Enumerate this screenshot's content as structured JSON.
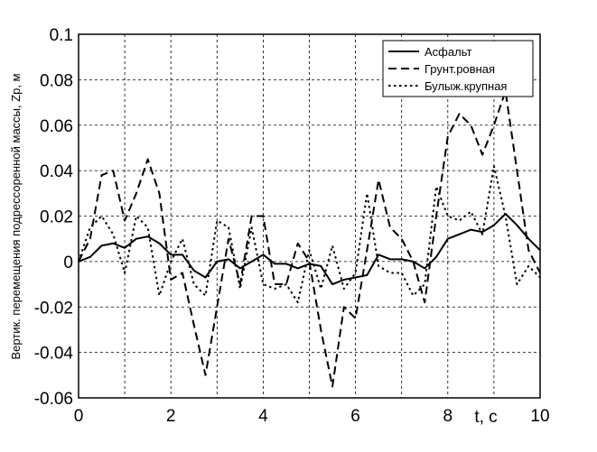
{
  "chart_data": {
    "type": "line",
    "ylabel": "Вертик. перемещения подрессоренной массы, Zp, м",
    "xlabel": "t, c",
    "x": [
      0,
      0.25,
      0.5,
      0.75,
      1,
      1.25,
      1.5,
      1.75,
      2,
      2.25,
      2.5,
      2.75,
      3,
      3.25,
      3.5,
      3.75,
      4,
      4.25,
      4.5,
      4.75,
      5,
      5.25,
      5.5,
      5.75,
      6,
      6.25,
      6.5,
      6.75,
      7,
      7.25,
      7.5,
      7.75,
      8,
      8.25,
      8.5,
      8.75,
      9,
      9.25,
      9.5,
      9.75,
      10
    ],
    "series": [
      {
        "name": "Асфальт",
        "color": "#000000",
        "style": "solid",
        "values": [
          0,
          0.002,
          0.007,
          0.008,
          0.006,
          0.01,
          0.011,
          0.008,
          0.003,
          0.003,
          -0.004,
          -0.007,
          0,
          0.001,
          -0.003,
          0,
          0.003,
          -0.001,
          -0.001,
          -0.003,
          -0.001,
          -0.002,
          -0.01,
          -0.008,
          -0.007,
          -0.006,
          0.003,
          0.001,
          0.001,
          0,
          -0.003,
          0.002,
          0.01,
          0.012,
          0.014,
          0.013,
          0.016,
          0.021,
          0.016,
          0.01,
          0.005
        ]
      },
      {
        "name": "Грунт.ровная",
        "color": "#000000",
        "style": "dashed",
        "values": [
          0,
          0.01,
          0.038,
          0.04,
          0.018,
          0.03,
          0.045,
          0.03,
          -0.008,
          -0.005,
          -0.028,
          -0.05,
          -0.02,
          0.01,
          -0.01,
          0.02,
          0.02,
          -0.01,
          -0.01,
          0.008,
          0,
          -0.03,
          -0.055,
          -0.02,
          -0.025,
          0.005,
          0.036,
          0.015,
          0.01,
          0,
          -0.018,
          0.02,
          0.055,
          0.065,
          0.06,
          0.047,
          0.06,
          0.075,
          0.04,
          0.005,
          -0.005
        ]
      },
      {
        "name": "Булыж.крупная",
        "color": "#000000",
        "style": "dotted",
        "values": [
          0,
          0.015,
          0.02,
          0.012,
          -0.005,
          0.02,
          0.015,
          -0.015,
          0,
          0.01,
          -0.01,
          -0.015,
          0.018,
          0.015,
          -0.012,
          0.015,
          -0.01,
          -0.012,
          -0.01,
          -0.018,
          0.005,
          -0.012,
          0.007,
          -0.012,
          -0.005,
          0.03,
          -0.002,
          -0.005,
          -0.005,
          -0.015,
          -0.01,
          0.033,
          0.02,
          0.018,
          0.022,
          0.012,
          0.042,
          0.02,
          -0.01,
          -0.002,
          -0.007
        ]
      }
    ],
    "xlim": [
      0,
      10
    ],
    "xticks": [
      0,
      2,
      4,
      6,
      8,
      10
    ],
    "xgrid_step": 1,
    "ylim": [
      -0.06,
      0.1
    ],
    "yticks": [
      -0.06,
      -0.04,
      -0.02,
      0,
      0.02,
      0.04,
      0.06,
      0.08,
      0.1
    ],
    "grid": true,
    "legend": "top-right"
  }
}
